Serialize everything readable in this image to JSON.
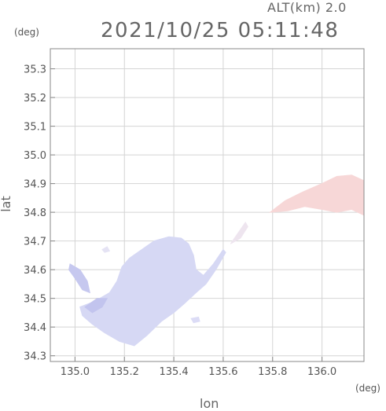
{
  "header": {
    "alt_label": "ALT(km) 2.0",
    "timestamp": "2021/10/25 05:11:48"
  },
  "chart_data": {
    "type": "heatmap",
    "title": "2021/10/25 05:11:48",
    "subtitle": "ALT(km) 2.0",
    "xlabel": "lon",
    "ylabel": "lat",
    "x_unit": "(deg)",
    "y_unit": "(deg)",
    "xlim": [
      134.9,
      136.17
    ],
    "ylim": [
      34.28,
      35.37
    ],
    "x_ticks": [
      135.0,
      135.2,
      135.4,
      135.6,
      135.8,
      136.0
    ],
    "x_tick_labels": [
      "135.0",
      "135.2",
      "135.4",
      "135.6",
      "135.8",
      "136.0"
    ],
    "y_ticks": [
      34.3,
      34.4,
      34.5,
      34.6,
      34.7,
      34.8,
      34.9,
      35.0,
      35.1,
      35.2,
      35.3
    ],
    "y_tick_labels": [
      "34.3",
      "34.4",
      "34.5",
      "34.6",
      "34.7",
      "34.8",
      "34.9",
      "35.0",
      "35.1",
      "35.2",
      "35.3"
    ],
    "grid": true,
    "regions": [
      {
        "name": "",
        "fill": "#d6d8f4",
        "points": [
          [
            135.02,
            34.47
          ],
          [
            135.08,
            34.49
          ],
          [
            135.14,
            34.52
          ],
          [
            135.17,
            34.56
          ],
          [
            135.19,
            34.61
          ],
          [
            135.22,
            34.64
          ],
          [
            135.27,
            34.67
          ],
          [
            135.32,
            34.7
          ],
          [
            135.38,
            34.715
          ],
          [
            135.43,
            34.71
          ],
          [
            135.46,
            34.69
          ],
          [
            135.48,
            34.65
          ],
          [
            135.49,
            34.6
          ],
          [
            135.52,
            34.58
          ],
          [
            135.56,
            34.62
          ],
          [
            135.6,
            34.67
          ],
          [
            135.61,
            34.66
          ],
          [
            135.57,
            34.6
          ],
          [
            135.53,
            34.55
          ],
          [
            135.49,
            34.52
          ],
          [
            135.44,
            34.48
          ],
          [
            135.4,
            34.45
          ],
          [
            135.35,
            34.42
          ],
          [
            135.29,
            34.37
          ],
          [
            135.24,
            34.335
          ],
          [
            135.18,
            34.35
          ],
          [
            135.12,
            34.38
          ],
          [
            135.07,
            34.41
          ],
          [
            135.03,
            34.44
          ]
        ]
      },
      {
        "name": "",
        "fill": "#c6c8ef",
        "points": [
          [
            134.98,
            34.62
          ],
          [
            135.02,
            34.6
          ],
          [
            135.05,
            34.56
          ],
          [
            135.06,
            34.52
          ],
          [
            135.03,
            34.53
          ],
          [
            135.0,
            34.57
          ],
          [
            134.975,
            34.6
          ]
        ]
      },
      {
        "name": "",
        "fill": "#c2c4ee",
        "points": [
          [
            135.04,
            34.47
          ],
          [
            135.09,
            34.5
          ],
          [
            135.13,
            34.5
          ],
          [
            135.11,
            34.47
          ],
          [
            135.07,
            34.45
          ]
        ]
      },
      {
        "name": "",
        "fill": "#dcdcf6",
        "points": [
          [
            135.47,
            34.43
          ],
          [
            135.5,
            34.435
          ],
          [
            135.505,
            34.42
          ],
          [
            135.48,
            34.415
          ]
        ]
      },
      {
        "name": "",
        "fill": "#f7d7d7",
        "points": [
          [
            135.79,
            34.8
          ],
          [
            135.85,
            34.84
          ],
          [
            135.92,
            34.87
          ],
          [
            136.0,
            34.9
          ],
          [
            136.06,
            34.925
          ],
          [
            136.12,
            34.93
          ],
          [
            136.17,
            34.91
          ],
          [
            136.17,
            34.79
          ],
          [
            136.12,
            34.81
          ],
          [
            136.06,
            34.8
          ],
          [
            136.0,
            34.81
          ],
          [
            135.93,
            34.82
          ],
          [
            135.86,
            34.805
          ]
        ]
      },
      {
        "name": "",
        "fill": "#eee5ef",
        "points": [
          [
            135.63,
            34.69
          ],
          [
            135.67,
            34.74
          ],
          [
            135.69,
            34.765
          ],
          [
            135.7,
            34.75
          ],
          [
            135.67,
            34.71
          ]
        ]
      },
      {
        "name": "",
        "fill": "#e5e3f4",
        "points": [
          [
            135.11,
            34.67
          ],
          [
            135.13,
            34.68
          ],
          [
            135.14,
            34.665
          ],
          [
            135.12,
            34.66
          ]
        ]
      }
    ]
  }
}
